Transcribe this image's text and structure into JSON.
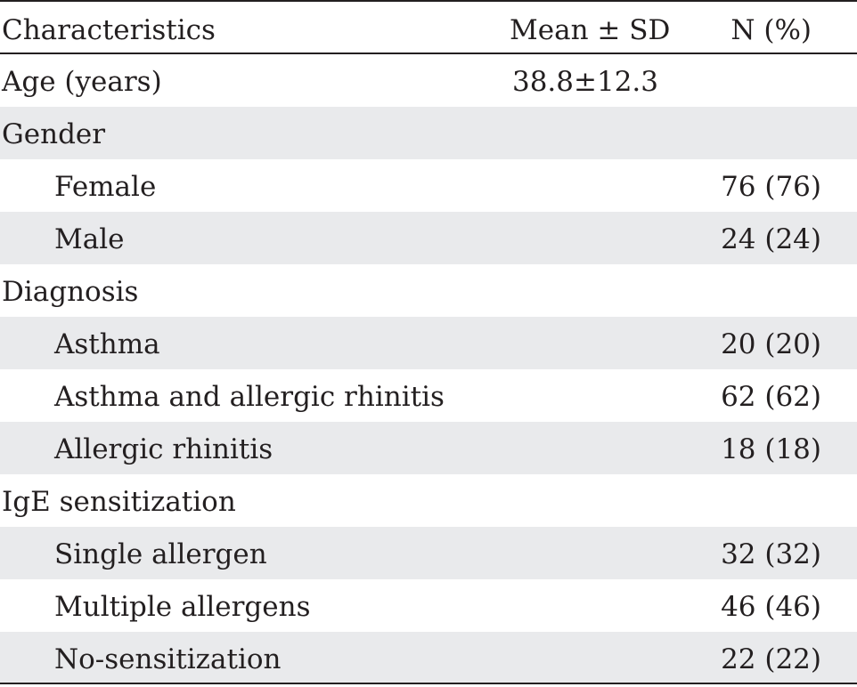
{
  "table": {
    "headers": {
      "characteristics": "Characteristics",
      "mean_sd": "Mean ± SD",
      "n_pct": "N (%)"
    },
    "rows": [
      {
        "label": "Age (years)",
        "mean_sd": "38.8±12.3",
        "n_pct": "",
        "indent": false,
        "shaded": false
      },
      {
        "label": "Gender",
        "mean_sd": "",
        "n_pct": "",
        "indent": false,
        "shaded": true
      },
      {
        "label": "Female",
        "mean_sd": "",
        "n_pct": "76 (76)",
        "indent": true,
        "shaded": false
      },
      {
        "label": "Male",
        "mean_sd": "",
        "n_pct": "24 (24)",
        "indent": true,
        "shaded": true
      },
      {
        "label": "Diagnosis",
        "mean_sd": "",
        "n_pct": "",
        "indent": false,
        "shaded": false
      },
      {
        "label": "Asthma",
        "mean_sd": "",
        "n_pct": "20 (20)",
        "indent": true,
        "shaded": true
      },
      {
        "label": "Asthma and allergic rhinitis",
        "mean_sd": "",
        "n_pct": "62 (62)",
        "indent": true,
        "shaded": false
      },
      {
        "label": "Allergic rhinitis",
        "mean_sd": "",
        "n_pct": "18 (18)",
        "indent": true,
        "shaded": true
      },
      {
        "label": "IgE sensitization",
        "mean_sd": "",
        "n_pct": "",
        "indent": false,
        "shaded": false
      },
      {
        "label": "Single allergen",
        "mean_sd": "",
        "n_pct": "32 (32)",
        "indent": true,
        "shaded": true
      },
      {
        "label": "Multiple allergens",
        "mean_sd": "",
        "n_pct": "46 (46)",
        "indent": true,
        "shaded": false
      },
      {
        "label": "No-sensitization",
        "mean_sd": "",
        "n_pct": "22 (22)",
        "indent": true,
        "shaded": true
      }
    ]
  }
}
